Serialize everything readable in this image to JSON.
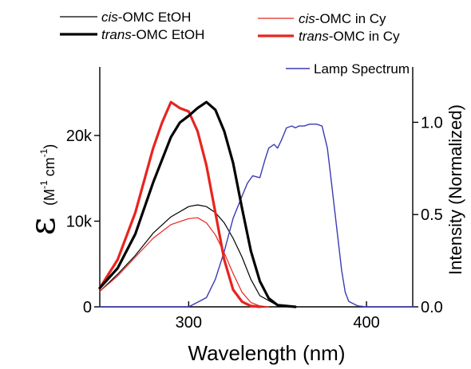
{
  "chart_data": {
    "type": "line",
    "xlabel": "Wavelength (nm)",
    "ylabel_left_symbol": "ε",
    "ylabel_left_units_pre": "(M",
    "ylabel_left_sup1": "-1",
    "ylabel_left_units_mid": " cm",
    "ylabel_left_sup2": "-1",
    "ylabel_left_units_post": ")",
    "ylabel_right": "Intensity (Normalized)",
    "xlim": [
      250,
      426
    ],
    "ylim_left": [
      0,
      28000
    ],
    "ylim_right": [
      0,
      1.3
    ],
    "x_ticks": [
      300,
      400
    ],
    "x_tick_labels": [
      "300",
      "400"
    ],
    "y_left_ticks": [
      0,
      10000,
      20000
    ],
    "y_left_tick_labels": [
      "0",
      "10k",
      "20k"
    ],
    "y_right_ticks": [
      0.0,
      0.5,
      1.0
    ],
    "y_right_tick_labels": [
      "0.0",
      "0.5",
      "1.0"
    ],
    "grid": false,
    "legend_placement": "top",
    "series": [
      {
        "name": "cis-OMC EtOH",
        "name_italic": "cis",
        "name_rest": "-OMC EtOH",
        "color": "#000000",
        "width": 1.2,
        "axis": "left",
        "x": [
          250,
          260,
          270,
          280,
          290,
          300,
          305,
          310,
          315,
          320,
          325,
          330,
          335,
          340,
          350,
          360
        ],
        "y": [
          1800,
          3800,
          6000,
          8600,
          10500,
          11700,
          11900,
          11700,
          11000,
          9800,
          8000,
          5800,
          3200,
          1300,
          150,
          0
        ]
      },
      {
        "name": "trans-OMC EtOH",
        "name_italic": "trans",
        "name_rest": "-OMC EtOH",
        "color": "#000000",
        "width": 3.2,
        "axis": "left",
        "x": [
          250,
          260,
          270,
          280,
          290,
          295,
          300,
          305,
          310,
          315,
          320,
          325,
          330,
          335,
          340,
          345,
          350,
          360
        ],
        "y": [
          2200,
          4500,
          8500,
          14500,
          19800,
          21500,
          22300,
          23200,
          23900,
          23000,
          20500,
          16800,
          11500,
          6500,
          3000,
          1000,
          200,
          0
        ]
      },
      {
        "name": "cis-OMC in Cy",
        "name_italic": "cis",
        "name_rest": "-OMC in Cy",
        "color": "#e8241f",
        "width": 1.2,
        "axis": "left",
        "x": [
          250,
          260,
          270,
          280,
          290,
          300,
          305,
          310,
          315,
          320,
          325,
          330,
          335,
          340,
          345
        ],
        "y": [
          1800,
          3600,
          5800,
          8000,
          9600,
          10300,
          10400,
          9800,
          8400,
          6300,
          3900,
          1700,
          500,
          100,
          0
        ]
      },
      {
        "name": "trans-OMC in Cy",
        "name_italic": "trans",
        "name_rest": "-OMC in Cy",
        "color": "#e8241f",
        "width": 3.2,
        "axis": "left",
        "x": [
          250,
          260,
          270,
          280,
          285,
          290,
          295,
          300,
          305,
          310,
          315,
          320,
          325,
          330,
          335,
          340
        ],
        "y": [
          2200,
          5500,
          11000,
          18500,
          21500,
          23900,
          23200,
          22800,
          20500,
          16500,
          11000,
          5500,
          2000,
          600,
          100,
          0
        ]
      },
      {
        "name": "Lamp Spectrum",
        "color": "#3a3ab5",
        "width": 1.4,
        "axis": "right",
        "x": [
          250,
          300,
          310,
          315,
          320,
          325,
          330,
          333,
          336,
          340,
          343,
          345,
          348,
          350,
          352,
          355,
          358,
          360,
          362,
          365,
          368,
          370,
          372,
          375,
          378,
          380,
          383,
          386,
          388,
          390,
          395,
          400,
          426
        ],
        "y": [
          0,
          0,
          0.05,
          0.15,
          0.3,
          0.48,
          0.6,
          0.67,
          0.71,
          0.7,
          0.8,
          0.86,
          0.88,
          0.86,
          0.9,
          0.97,
          0.98,
          0.97,
          0.98,
          0.98,
          0.99,
          0.99,
          0.99,
          0.98,
          0.86,
          0.7,
          0.45,
          0.2,
          0.08,
          0.03,
          0.005,
          0,
          0
        ]
      }
    ]
  }
}
